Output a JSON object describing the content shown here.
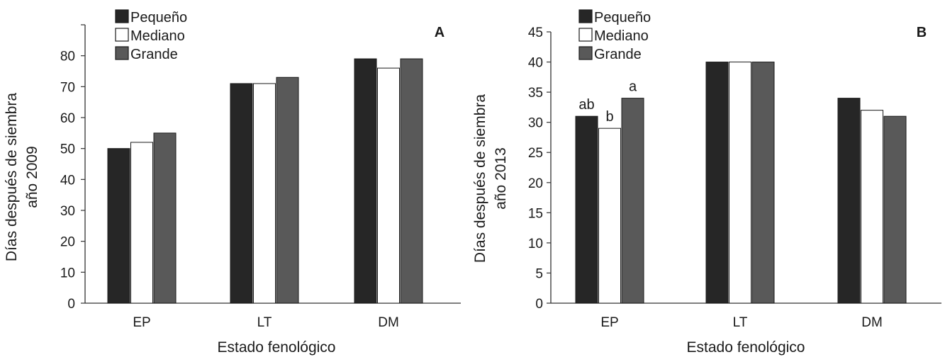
{
  "chart_data": [
    {
      "type": "bar",
      "panel_label": "A",
      "categories": [
        "EP",
        "LT",
        "DM"
      ],
      "series": [
        {
          "name": "Pequeño",
          "values": [
            50,
            71,
            79
          ]
        },
        {
          "name": "Mediano",
          "values": [
            52,
            71,
            76
          ]
        },
        {
          "name": "Grande",
          "values": [
            55,
            73,
            79
          ]
        }
      ],
      "xlabel": "Estado fenológico",
      "ylabel": [
        "Días después de siembra",
        "año 2009"
      ],
      "ylim": [
        0,
        90
      ],
      "yticks": [
        0,
        10,
        20,
        30,
        40,
        50,
        60,
        70,
        80
      ],
      "grid": false,
      "legend": "top-left",
      "annotations": []
    },
    {
      "type": "bar",
      "panel_label": "B",
      "categories": [
        "EP",
        "LT",
        "DM"
      ],
      "series": [
        {
          "name": "Pequeño",
          "values": [
            31,
            40,
            34
          ]
        },
        {
          "name": "Mediano",
          "values": [
            29,
            40,
            32
          ]
        },
        {
          "name": "Grande",
          "values": [
            34,
            40,
            31
          ]
        }
      ],
      "xlabel": "Estado fenológico",
      "ylabel": [
        "Días después de siembra",
        "año 2013"
      ],
      "ylim": [
        0,
        45
      ],
      "yticks": [
        0,
        5,
        10,
        15,
        20,
        25,
        30,
        35,
        40,
        45
      ],
      "grid": false,
      "legend": "top-left",
      "annotations": [
        {
          "category": "EP",
          "series": "Pequeño",
          "text": "ab"
        },
        {
          "category": "EP",
          "series": "Mediano",
          "text": "b"
        },
        {
          "category": "EP",
          "series": "Grande",
          "text": "a"
        }
      ]
    }
  ],
  "colors": {
    "Pequeño": "#262626",
    "Mediano": "#ffffff",
    "Grande": "#595959",
    "outline": "#1a1a1a",
    "axis": "#333333"
  }
}
